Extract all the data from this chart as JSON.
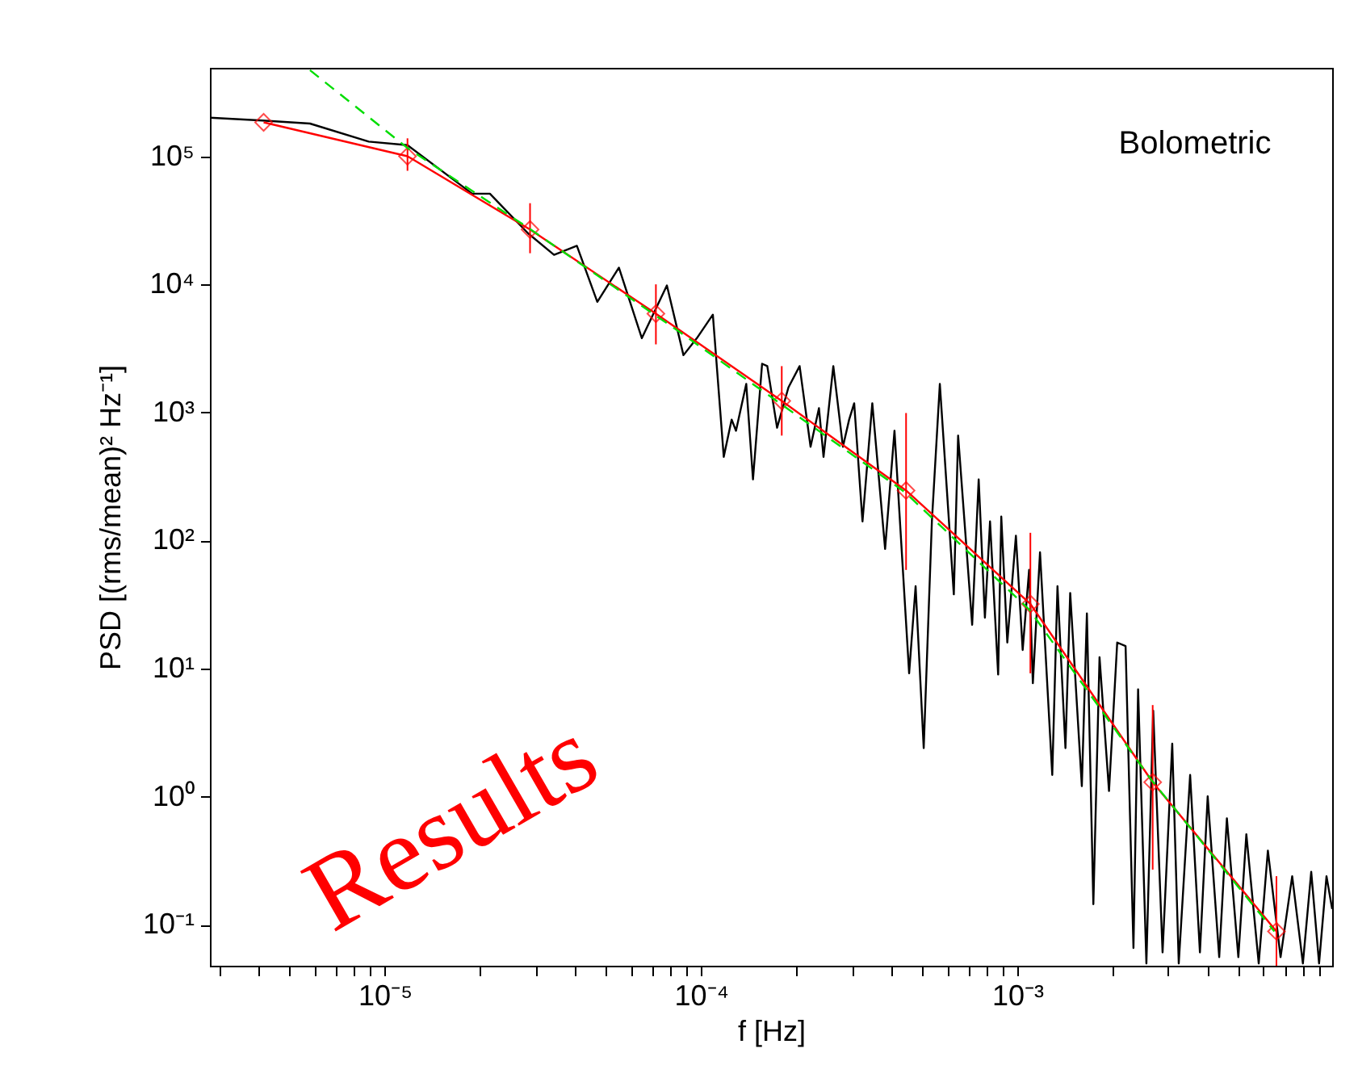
{
  "chart_data": {
    "type": "line",
    "xlabel": "f [Hz]",
    "ylabel": "PSD [(rms/mean)² Hz⁻¹]",
    "annotations": [
      "Bolometric",
      "Results"
    ],
    "log": "xy",
    "grid": false,
    "xlim": [
      2.8e-06,
      0.0099
    ],
    "ylim": [
      0.048,
      490000
    ],
    "xticks": [
      {
        "value": 3e-06,
        "label": null
      },
      {
        "value": 4e-06,
        "label": null
      },
      {
        "value": 5e-06,
        "label": null
      },
      {
        "value": 6e-06,
        "label": null
      },
      {
        "value": 7e-06,
        "label": null
      },
      {
        "value": 8e-06,
        "label": null
      },
      {
        "value": 9e-06,
        "label": null
      },
      {
        "value": 1e-05,
        "label": "10⁻⁵"
      },
      {
        "value": 2e-05,
        "label": null
      },
      {
        "value": 3e-05,
        "label": null
      },
      {
        "value": 4e-05,
        "label": null
      },
      {
        "value": 5e-05,
        "label": null
      },
      {
        "value": 6e-05,
        "label": null
      },
      {
        "value": 7e-05,
        "label": null
      },
      {
        "value": 8e-05,
        "label": null
      },
      {
        "value": 9e-05,
        "label": null
      },
      {
        "value": 0.0001,
        "label": "10⁻⁴"
      },
      {
        "value": 0.0002,
        "label": null
      },
      {
        "value": 0.0003,
        "label": null
      },
      {
        "value": 0.0004,
        "label": null
      },
      {
        "value": 0.0005,
        "label": null
      },
      {
        "value": 0.0006,
        "label": null
      },
      {
        "value": 0.0007,
        "label": null
      },
      {
        "value": 0.0008,
        "label": null
      },
      {
        "value": 0.0009,
        "label": null
      },
      {
        "value": 0.001,
        "label": "10⁻³"
      },
      {
        "value": 0.002,
        "label": null
      },
      {
        "value": 0.003,
        "label": null
      },
      {
        "value": 0.004,
        "label": null
      },
      {
        "value": 0.005,
        "label": null
      },
      {
        "value": 0.006,
        "label": null
      },
      {
        "value": 0.007,
        "label": null
      },
      {
        "value": 0.008,
        "label": null
      },
      {
        "value": 0.009,
        "label": null
      }
    ],
    "yticks": [
      {
        "value": 0.1,
        "label": "10⁻¹"
      },
      {
        "value": 1,
        "label": "10⁰"
      },
      {
        "value": 10,
        "label": "10¹"
      },
      {
        "value": 100,
        "label": "10²"
      },
      {
        "value": 1000,
        "label": "10³"
      },
      {
        "value": 10000,
        "label": "10⁴"
      },
      {
        "value": 100000,
        "label": "10⁵"
      }
    ],
    "series": [
      {
        "color": "#000000",
        "x": [
          2.8e-06,
          4.1e-06,
          5.8e-06,
          8.9e-06,
          1.18e-05,
          1.89e-05,
          2.15e-05,
          2.84e-05,
          3.43e-05,
          4.05e-05,
          4.7e-05,
          5.5e-05,
          6.5e-05,
          7.8e-05,
          8.8e-05,
          9.7e-05,
          0.000109,
          0.000118,
          0.000125,
          0.000129,
          0.000139,
          0.000146,
          0.000156,
          0.000162,
          0.000174,
          0.000189,
          0.000205,
          0.000222,
          0.000236,
          0.000244,
          0.000262,
          0.000281,
          0.000294,
          0.000305,
          0.000324,
          0.000348,
          0.000382,
          0.000409,
          0.000455,
          0.000477,
          0.000506,
          0.000537,
          0.000569,
          0.00063,
          0.00065,
          0.00072,
          0.000755,
          0.00079,
          0.00082,
          0.00087,
          0.00089,
          0.00093,
          0.00099,
          0.00104,
          0.00109,
          0.00112,
          0.00118,
          0.00129,
          0.00134,
          0.00142,
          0.00147,
          0.0016,
          0.00166,
          0.00174,
          0.00182,
          0.00195,
          0.00207,
          0.0022,
          0.00233,
          0.00241,
          0.00256,
          0.00269,
          0.00288,
          0.00309,
          0.00324,
          0.00352,
          0.00378,
          0.004,
          0.00435,
          0.0046,
          0.005,
          0.0053,
          0.0058,
          0.0062,
          0.0068,
          0.0074,
          0.008,
          0.0085,
          0.009,
          0.0095,
          0.0099
        ],
        "values": [
          200000,
          190000,
          180000,
          130000,
          122000,
          51000,
          51000,
          25000,
          17000,
          20000,
          7300,
          13500,
          3800,
          9800,
          2800,
          3800,
          5800,
          450,
          880,
          720,
          1670,
          300,
          2400,
          2300,
          760,
          1570,
          2300,
          540,
          1080,
          450,
          2300,
          540,
          880,
          1180,
          141,
          1180,
          86,
          720,
          9.2,
          44,
          2.4,
          141,
          1670,
          38,
          660,
          22,
          300,
          25,
          141,
          9.0,
          154,
          16,
          109,
          14,
          59,
          7.7,
          81,
          1.48,
          44,
          2.4,
          39,
          1.21,
          27,
          0.145,
          12.3,
          1.11,
          16,
          15,
          0.066,
          6.9,
          0.05,
          4.7,
          0.061,
          2.6,
          0.05,
          1.48,
          0.061,
          1.01,
          0.056,
          0.68,
          0.056,
          0.51,
          0.05,
          0.38,
          0.056,
          0.24,
          0.05,
          0.26,
          0.05,
          0.24,
          0.133
        ]
      },
      {
        "color": "#ff0000",
        "marker": "diamond",
        "x": [
          4.14e-06,
          1.18e-05,
          2.88e-05,
          7.2e-05,
          0.00018,
          0.000445,
          0.0011,
          0.00268,
          0.0066
        ],
        "values": [
          184000,
          100000,
          26800,
          5900,
          1230,
          246,
          32,
          1.3,
          0.089
        ],
        "errors": [
          null,
          [
            77000,
            138000
          ],
          [
            17500,
            43000
          ],
          [
            3400,
            10000
          ],
          [
            660,
            2300
          ],
          [
            59,
            990
          ],
          [
            9.2,
            115
          ],
          [
            0.27,
            5.2
          ],
          [
            0.048,
            0.24
          ]
        ]
      },
      {
        "color": "#00dd00",
        "line_style": "dashed",
        "x": [
          5.8e-06,
          1.18e-05,
          2.88e-05,
          8.5e-05,
          0.00044,
          0.00109,
          0.00265,
          0.0065
        ],
        "values": [
          470000,
          116000,
          27000,
          4300,
          240,
          29,
          1.36,
          0.089
        ]
      }
    ]
  }
}
